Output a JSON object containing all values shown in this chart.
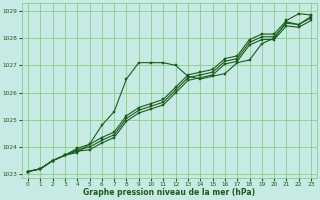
{
  "bg_color": "#c8eae4",
  "grid_color": "#78c878",
  "line_color": "#1a5c1a",
  "marker_color": "#1a5c1a",
  "xlabel": "Graphe pression niveau de la mer (hPa)",
  "xlabel_color": "#1a5c1a",
  "tick_color": "#1a5c1a",
  "ylim": [
    1022.85,
    1029.3
  ],
  "xlim": [
    -0.5,
    23.5
  ],
  "yticks": [
    1023,
    1024,
    1025,
    1026,
    1027,
    1028,
    1029
  ],
  "xticks": [
    0,
    1,
    2,
    3,
    4,
    5,
    6,
    7,
    8,
    9,
    10,
    11,
    12,
    13,
    14,
    15,
    16,
    17,
    18,
    19,
    20,
    21,
    22,
    23
  ],
  "series_bump_x": [
    0,
    1,
    2,
    3,
    4,
    5,
    6,
    7,
    8,
    9,
    10,
    11,
    12,
    13,
    14,
    15,
    16,
    17,
    18,
    19,
    20,
    21,
    22,
    23
  ],
  "series_bump_y": [
    1023.1,
    1023.2,
    1023.5,
    1023.7,
    1023.8,
    1024.1,
    1024.8,
    1025.3,
    1026.5,
    1027.1,
    1027.1,
    1027.1,
    1027.0,
    1026.6,
    1026.5,
    1026.6,
    1026.7,
    1027.1,
    1027.2,
    1027.8,
    1028.0,
    1028.6,
    1028.5,
    1028.8
  ],
  "series_lin1_x": [
    0,
    1,
    2,
    3,
    4,
    5,
    6,
    7,
    8,
    9,
    10,
    11,
    12,
    13,
    14,
    15,
    16,
    17,
    18,
    19,
    20,
    21,
    22,
    23
  ],
  "series_lin1_y": [
    1023.1,
    1023.2,
    1023.5,
    1023.7,
    1023.85,
    1023.9,
    1024.15,
    1024.35,
    1024.95,
    1025.25,
    1025.4,
    1025.55,
    1026.0,
    1026.45,
    1026.55,
    1026.65,
    1027.05,
    1027.15,
    1027.75,
    1027.95,
    1027.95,
    1028.45,
    1028.4,
    1028.65
  ],
  "series_lin2_x": [
    0,
    1,
    2,
    3,
    4,
    5,
    6,
    7,
    8,
    9,
    10,
    11,
    12,
    13,
    14,
    15,
    16,
    17,
    18,
    19,
    20,
    21,
    22,
    23
  ],
  "series_lin2_y": [
    1023.1,
    1023.2,
    1023.5,
    1023.7,
    1023.9,
    1024.0,
    1024.25,
    1024.45,
    1025.05,
    1025.35,
    1025.5,
    1025.65,
    1026.1,
    1026.55,
    1026.65,
    1026.75,
    1027.15,
    1027.25,
    1027.85,
    1028.05,
    1028.05,
    1028.55,
    1028.5,
    1028.75
  ],
  "series_lin3_x": [
    0,
    1,
    2,
    3,
    4,
    5,
    6,
    7,
    8,
    9,
    10,
    11,
    12,
    13,
    14,
    15,
    16,
    17,
    18,
    19,
    20,
    21,
    22,
    23
  ],
  "series_lin3_y": [
    1023.1,
    1023.2,
    1023.5,
    1023.7,
    1023.95,
    1024.1,
    1024.35,
    1024.55,
    1025.15,
    1025.45,
    1025.6,
    1025.75,
    1026.2,
    1026.65,
    1026.75,
    1026.85,
    1027.25,
    1027.35,
    1027.95,
    1028.15,
    1028.15,
    1028.65,
    1028.9,
    1028.85
  ]
}
